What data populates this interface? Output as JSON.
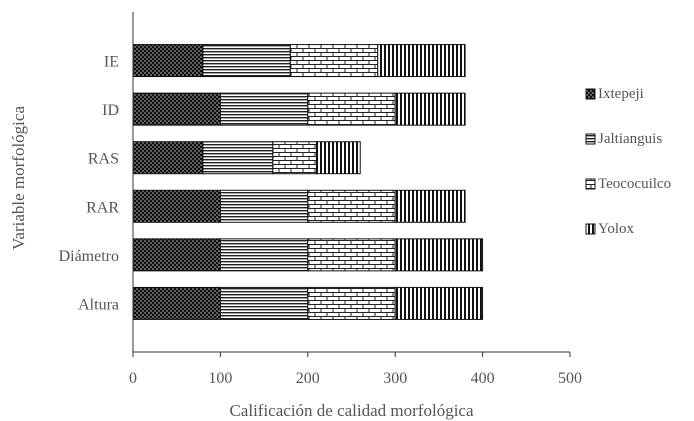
{
  "chart_data": {
    "type": "bar",
    "orientation": "horizontal",
    "stacked": true,
    "categories": [
      "Altura",
      "Diámetro",
      "RAR",
      "RAS",
      "ID",
      "IE"
    ],
    "series": [
      {
        "name": "Ixtepeji",
        "values": [
          100,
          100,
          100,
          80,
          100,
          80
        ],
        "pattern": "dots"
      },
      {
        "name": "Jaltianguis",
        "values": [
          100,
          100,
          100,
          80,
          100,
          100
        ],
        "pattern": "horizontal-lines"
      },
      {
        "name": "Teococuilco",
        "values": [
          100,
          100,
          100,
          50,
          100,
          100
        ],
        "pattern": "bricks"
      },
      {
        "name": "Yolox",
        "values": [
          100,
          100,
          80,
          50,
          80,
          100
        ],
        "pattern": "vertical-lines"
      }
    ],
    "xlabel": "Calificación de calidad morfológica",
    "ylabel": "Variable morfológica",
    "xlim": [
      0,
      500
    ],
    "xticks": [
      0,
      100,
      200,
      300,
      400,
      500
    ],
    "grid": false,
    "legend_position": "right"
  }
}
